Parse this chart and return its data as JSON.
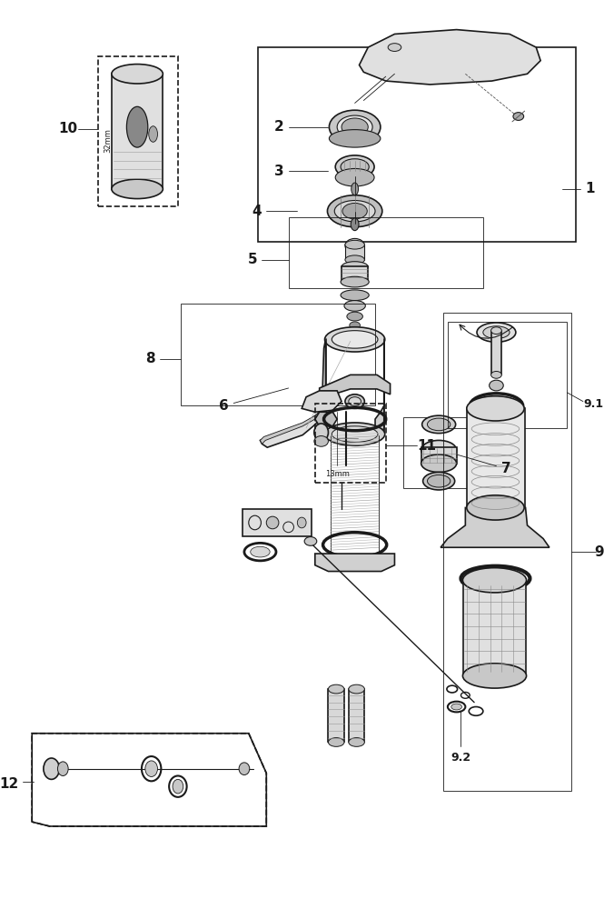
{
  "bg_color": "#ffffff",
  "line_color": "#1a1a1a",
  "label_color": "#1a1a1a",
  "lw_main": 1.2,
  "lw_thin": 0.6,
  "lw_thick": 2.0,
  "figsize": [
    6.65,
    10.0
  ],
  "dpi": 100
}
